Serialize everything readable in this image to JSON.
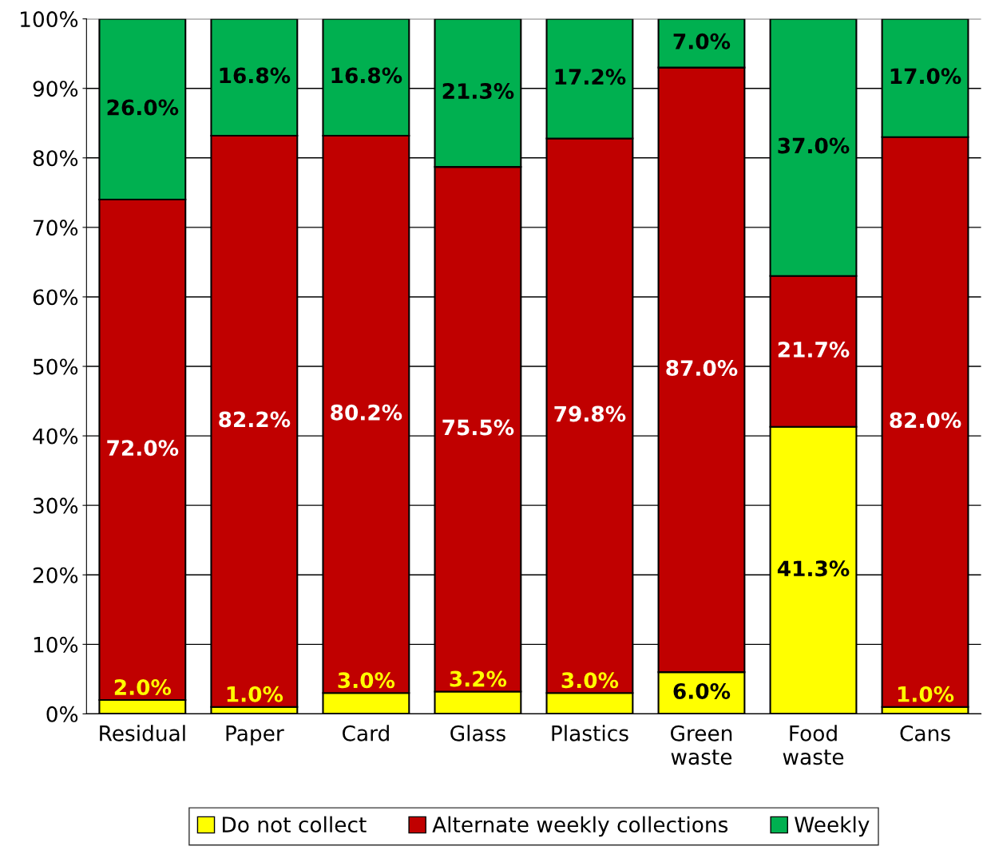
{
  "chart_data": {
    "type": "bar",
    "stacked": true,
    "categories": [
      "Residual",
      "Paper",
      "Card",
      "Glass",
      "Plastics",
      "Green\nwaste",
      "Food\nwaste",
      "Cans"
    ],
    "series": [
      {
        "name": "Do not collect",
        "color": "#ffff00",
        "values": [
          2.0,
          1.0,
          3.0,
          3.2,
          3.0,
          6.0,
          41.3,
          1.0
        ],
        "value_labels": [
          "2.0%",
          "1.0%",
          "3.0%",
          "3.2%",
          "3.0%",
          "6.0%",
          "41.3%",
          "1.0%"
        ]
      },
      {
        "name": "Alternate weekly collections",
        "color": "#c00000",
        "values": [
          72.0,
          82.2,
          80.2,
          75.5,
          79.8,
          87.0,
          21.7,
          82.0
        ],
        "value_labels": [
          "72.0%",
          "82.2%",
          "80.2%",
          "75.5%",
          "79.8%",
          "87.0%",
          "21.7%",
          "82.0%"
        ]
      },
      {
        "name": "Weekly",
        "color": "#00b050",
        "values": [
          26.0,
          16.8,
          16.8,
          21.3,
          17.2,
          7.0,
          37.0,
          17.0
        ],
        "value_labels": [
          "26.0%",
          "16.8%",
          "16.8%",
          "21.3%",
          "17.2%",
          "7.0%",
          "37.0%",
          "17.0%"
        ]
      }
    ],
    "ylim": [
      0,
      100
    ],
    "yticks": [
      {
        "value": 0,
        "label": "0%"
      },
      {
        "value": 10,
        "label": "10%"
      },
      {
        "value": 20,
        "label": "20%"
      },
      {
        "value": 30,
        "label": "30%"
      },
      {
        "value": 40,
        "label": "40%"
      },
      {
        "value": 50,
        "label": "50%"
      },
      {
        "value": 60,
        "label": "60%"
      },
      {
        "value": 70,
        "label": "70%"
      },
      {
        "value": 80,
        "label": "80%"
      },
      {
        "value": 90,
        "label": "90%"
      },
      {
        "value": 100,
        "label": "100%"
      }
    ],
    "grid": "y",
    "legend": "bottom"
  }
}
